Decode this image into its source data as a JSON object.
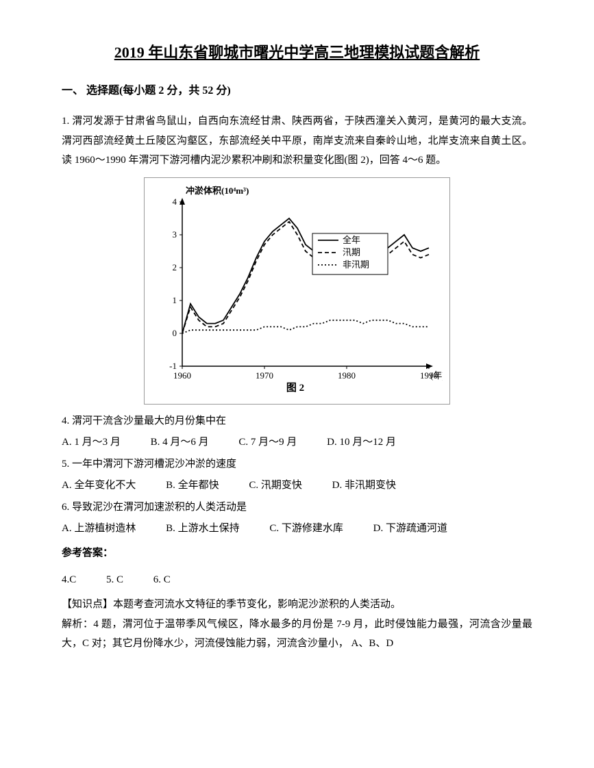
{
  "title": "2019 年山东省聊城市曙光中学高三地理模拟试题含解析",
  "section_header": "一、 选择题(每小题 2 分，共 52 分)",
  "stem": "1. 渭河发源于甘肃省鸟鼠山，自西向东流经甘肃、陕西两省，于陕西潼关入黄河，是黄河的最大支流。渭河西部流经黄土丘陵区沟壑区，东部流经关中平原，南岸支流来自秦岭山地，北岸支流来自黄土区。读 1960～1990 年渭河下游河槽内泥沙累积冲刷和淤积量变化图(图 2)，回答 4～6 题。",
  "chart": {
    "y_axis_label": "冲淤体积(10⁴m³)",
    "x_axis_label": "(年)",
    "y_ticks": [
      "-1",
      "0",
      "1",
      "2",
      "3",
      "4"
    ],
    "x_ticks": [
      "1960",
      "1970",
      "1980",
      "1990"
    ],
    "caption": "图 2",
    "legend": [
      "全年",
      "汛期",
      "非汛期"
    ],
    "series": {
      "annual": {
        "style": "solid",
        "data": [
          0,
          0.9,
          0.5,
          0.3,
          0.3,
          0.4,
          0.8,
          1.2,
          1.7,
          2.3,
          2.8,
          3.1,
          3.3,
          3.5,
          3.2,
          2.7,
          2.5,
          2.4,
          2.6,
          2.9,
          2.5,
          2.1,
          2.0,
          2.0,
          2.2,
          2.6,
          2.8,
          3.0,
          2.6,
          2.5,
          2.6
        ]
      },
      "flood": {
        "style": "dashed",
        "data": [
          0,
          0.8,
          0.4,
          0.2,
          0.2,
          0.3,
          0.7,
          1.1,
          1.6,
          2.2,
          2.7,
          3.0,
          3.2,
          3.4,
          3.0,
          2.5,
          2.3,
          2.2,
          2.3,
          2.6,
          2.3,
          1.9,
          1.8,
          1.8,
          2.0,
          2.4,
          2.6,
          2.8,
          2.4,
          2.3,
          2.4
        ]
      },
      "nonflood": {
        "style": "dotted",
        "data": [
          0,
          0.1,
          0.1,
          0.1,
          0.1,
          0.1,
          0.1,
          0.1,
          0.1,
          0.1,
          0.2,
          0.2,
          0.2,
          0.1,
          0.2,
          0.2,
          0.3,
          0.3,
          0.4,
          0.4,
          0.4,
          0.4,
          0.3,
          0.4,
          0.4,
          0.4,
          0.3,
          0.3,
          0.2,
          0.2,
          0.2
        ]
      }
    }
  },
  "q4": {
    "text": "4. 渭河干流含沙量最大的月份集中在",
    "A": "A. 1 月～3 月",
    "B": "B. 4 月～6 月",
    "C": "C. 7 月～9 月",
    "D": "D. 10 月～12 月"
  },
  "q5": {
    "text": "5. 一年中渭河下游河槽泥沙冲淤的速度",
    "A": "A. 全年变化不大",
    "B": "B. 全年都快",
    "C": "C. 汛期变快",
    "D": "D. 非汛期变快"
  },
  "q6": {
    "text": "6. 导致泥沙在渭河加速淤积的人类活动是",
    "A": "A. 上游植树造林",
    "B": "B. 上游水土保持",
    "C": "C. 下游修建水库",
    "D": "D. 下游疏通河道"
  },
  "answer_header": "参考答案：",
  "answers": {
    "a4": "4.C",
    "a5": "5. C",
    "a6": "6. C"
  },
  "knowledge_point": "【知识点】本题考查河流水文特征的季节变化，影响泥沙淤积的人类活动。",
  "analysis": "解析：4 题，渭河位于温带季风气候区，降水最多的月份是 7-9 月，此时侵蚀能力最强，河流含沙量最大，C 对；其它月份降水少，河流侵蚀能力弱，河流含沙量小，  A、B、D"
}
